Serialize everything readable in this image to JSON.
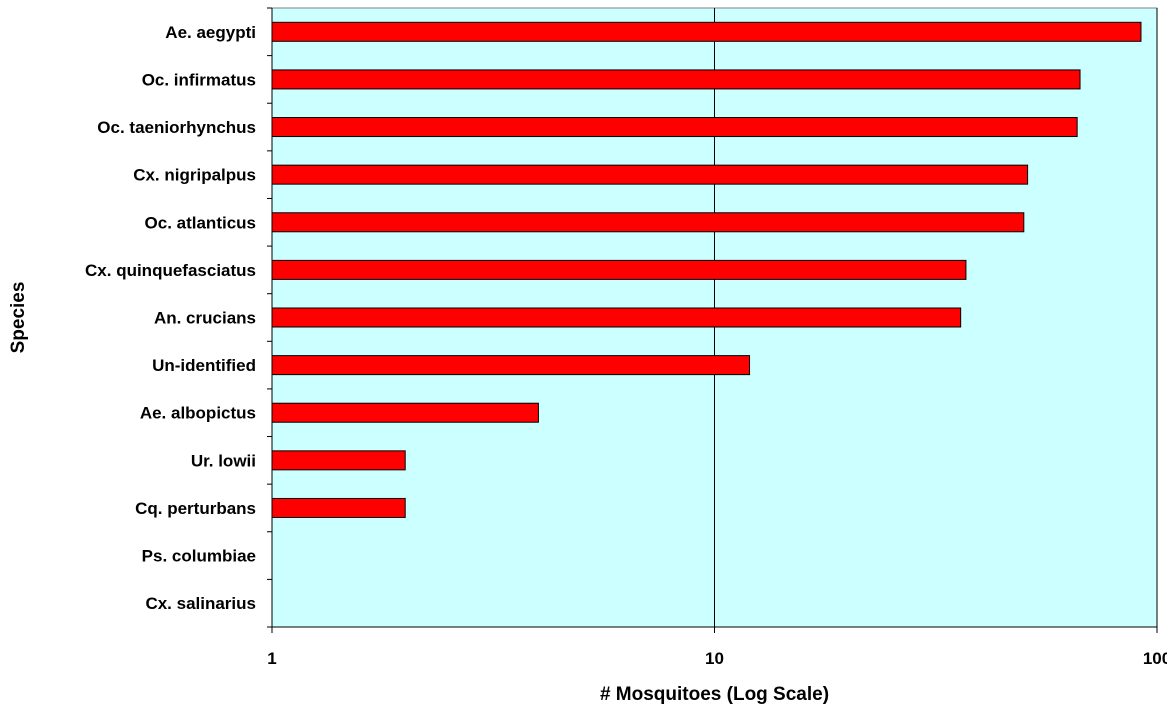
{
  "chart_data": {
    "type": "bar",
    "orientation": "horizontal",
    "title": "",
    "xlabel": "# Mosquitoes (Log Scale)",
    "ylabel": "Species",
    "x_scale": "log",
    "xlim": [
      1,
      100
    ],
    "x_ticks": [
      1,
      10,
      100
    ],
    "x_tick_labels": [
      "1",
      "10",
      "100"
    ],
    "grid": "vertical major gridlines",
    "legend": "none",
    "categories": [
      "Ae. aegypti",
      "Oc. infirmatus",
      "Oc. taeniorhynchus",
      "Cx. nigripalpus",
      "Oc. atlanticus",
      "Cx. quinquefasciatus",
      "An. crucians",
      "Un-identified",
      "Ae. albopictus",
      "Ur. lowii",
      "Cq. perturbans",
      "Ps. columbiae",
      "Cx. salinarius"
    ],
    "values": [
      92,
      67,
      66,
      51,
      50,
      37,
      36,
      12,
      4,
      2,
      2,
      0,
      0
    ],
    "colors": {
      "bar_fill": "#ff0000",
      "bar_stroke": "#000000",
      "plot_background": "#ccffff",
      "gridline": "#000000"
    }
  }
}
